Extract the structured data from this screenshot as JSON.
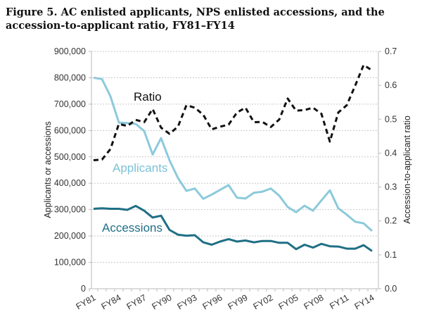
{
  "title": "Figure 5. AC enlisted applicants, NPS enlisted accessions, and the accession-to-applicant ratio, FY81–FY14",
  "chart_data": {
    "type": "line",
    "title": "Figure 5. AC enlisted applicants, NPS enlisted accessions, and the accession-to-applicant ratio, FY81–FY14",
    "xlabel": "",
    "ylabel": "Applicants or accessions",
    "ylabel_right": "Accession-to-applicant ratio",
    "ylim": [
      0,
      900000
    ],
    "ylim_right": [
      0,
      0.7
    ],
    "grid": true,
    "x": [
      "FY81",
      "FY82",
      "FY83",
      "FY84",
      "FY85",
      "FY86",
      "FY87",
      "FY88",
      "FY89",
      "FY90",
      "FY91",
      "FY92",
      "FY93",
      "FY94",
      "FY95",
      "FY96",
      "FY97",
      "FY98",
      "FY99",
      "FY00",
      "FY01",
      "FY02",
      "FY03",
      "FY04",
      "FY05",
      "FY06",
      "FY07",
      "FY08",
      "FY09",
      "FY10",
      "FY11",
      "FY12",
      "FY13",
      "FY14"
    ],
    "x_tick_labels": [
      "FY81",
      "FY84",
      "FY87",
      "FY90",
      "FY93",
      "FY96",
      "FY99",
      "FY02",
      "FY05",
      "FY08",
      "FY11",
      "FY14"
    ],
    "y_tick_labels": [
      "0",
      "100,000",
      "200,000",
      "300,000",
      "400,000",
      "500,000",
      "600,000",
      "700,000",
      "800,000",
      "900,000"
    ],
    "y_right_tick_labels": [
      "0.0",
      "0.1",
      "0.2",
      "0.3",
      "0.4",
      "0.5",
      "0.6",
      "0.7"
    ],
    "series": [
      {
        "name": "Applicants",
        "axis": "left",
        "color": "#8ccadb",
        "dash": false,
        "values": [
          800000,
          795000,
          730000,
          630000,
          628000,
          625000,
          598000,
          509000,
          571000,
          487000,
          420000,
          371000,
          380000,
          341000,
          357000,
          375000,
          393000,
          345000,
          342000,
          364000,
          368000,
          380000,
          353000,
          310000,
          290000,
          315000,
          296000,
          335000,
          373000,
          305000,
          281000,
          254000,
          248000,
          219000
        ]
      },
      {
        "name": "Accessions",
        "axis": "left",
        "color": "#1f6f85",
        "dash": false,
        "values": [
          303000,
          305000,
          303000,
          303000,
          299000,
          314000,
          296000,
          270000,
          277000,
          223000,
          205000,
          201000,
          203000,
          176000,
          167000,
          179000,
          188000,
          179000,
          183000,
          176000,
          181000,
          181000,
          174000,
          174000,
          150000,
          167000,
          156000,
          170000,
          161000,
          160000,
          152000,
          152000,
          165000,
          143000
        ]
      },
      {
        "name": "Ratio",
        "axis": "right",
        "color": "#111111",
        "dash": true,
        "values": [
          0.379,
          0.381,
          0.412,
          0.486,
          0.48,
          0.498,
          0.491,
          0.53,
          0.475,
          0.457,
          0.478,
          0.541,
          0.534,
          0.513,
          0.47,
          0.478,
          0.484,
          0.52,
          0.534,
          0.491,
          0.492,
          0.477,
          0.499,
          0.561,
          0.525,
          0.527,
          0.534,
          0.516,
          0.434,
          0.52,
          0.541,
          0.599,
          0.66,
          0.644
        ]
      }
    ]
  }
}
